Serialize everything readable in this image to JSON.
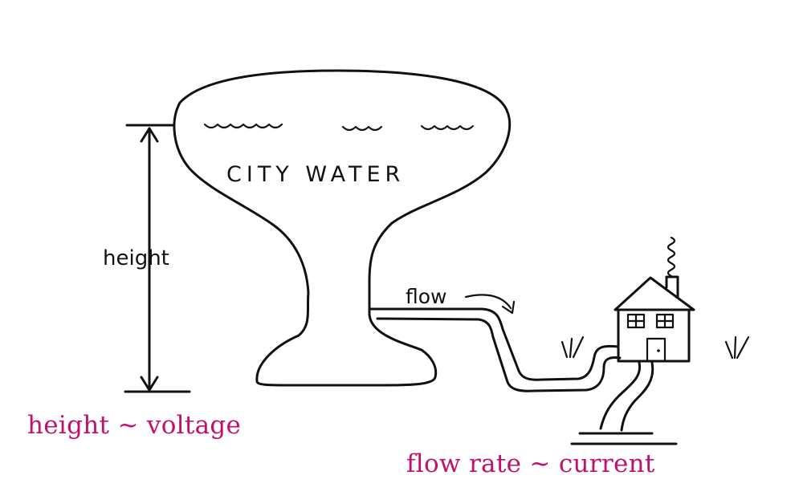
{
  "tank": {
    "label": "CITY WATER"
  },
  "dimension": {
    "label": "height"
  },
  "pipe": {
    "label": "flow"
  },
  "captions": {
    "height": "height ~ voltage",
    "flow": "flow rate ~ current"
  },
  "colors": {
    "caption": "#c0126a",
    "ink": "#111111"
  }
}
